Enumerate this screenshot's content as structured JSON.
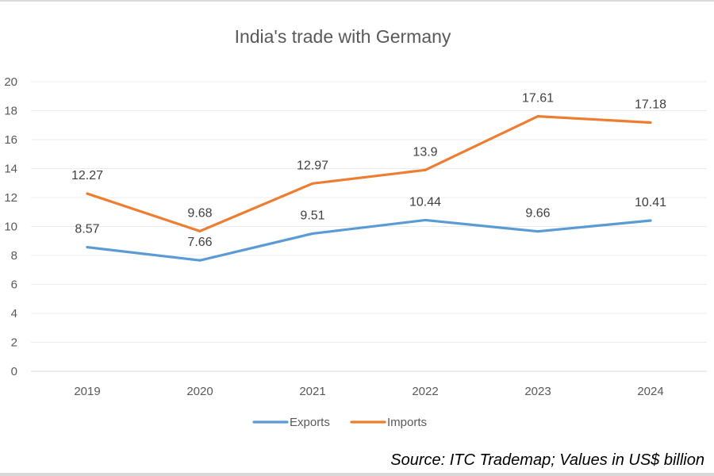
{
  "chart_data": {
    "type": "line",
    "title": "India's trade with Germany",
    "xlabel": "",
    "ylabel": "",
    "categories": [
      "2019",
      "2020",
      "2021",
      "2022",
      "2023",
      "2024"
    ],
    "series": [
      {
        "name": "Exports",
        "color": "#5b9bd5",
        "values": [
          8.57,
          7.66,
          9.51,
          10.44,
          9.66,
          10.41
        ],
        "labels": [
          "8.57",
          "7.66",
          "9.51",
          "10.44",
          "9.66",
          "10.41"
        ]
      },
      {
        "name": "Imports",
        "color": "#ed7d31",
        "values": [
          12.27,
          9.68,
          12.97,
          13.9,
          17.61,
          17.18
        ],
        "labels": [
          "12.27",
          "9.68",
          "12.97",
          "13.9",
          "17.61",
          "17.18"
        ]
      }
    ],
    "ylim": [
      0,
      20
    ],
    "yticks": [
      "0",
      "2",
      "4",
      "6",
      "8",
      "10",
      "12",
      "14",
      "16",
      "18",
      "20"
    ],
    "grid": true,
    "legend_position": "bottom",
    "annotation": "Source: ITC Trademap; Values in US$ billion"
  }
}
